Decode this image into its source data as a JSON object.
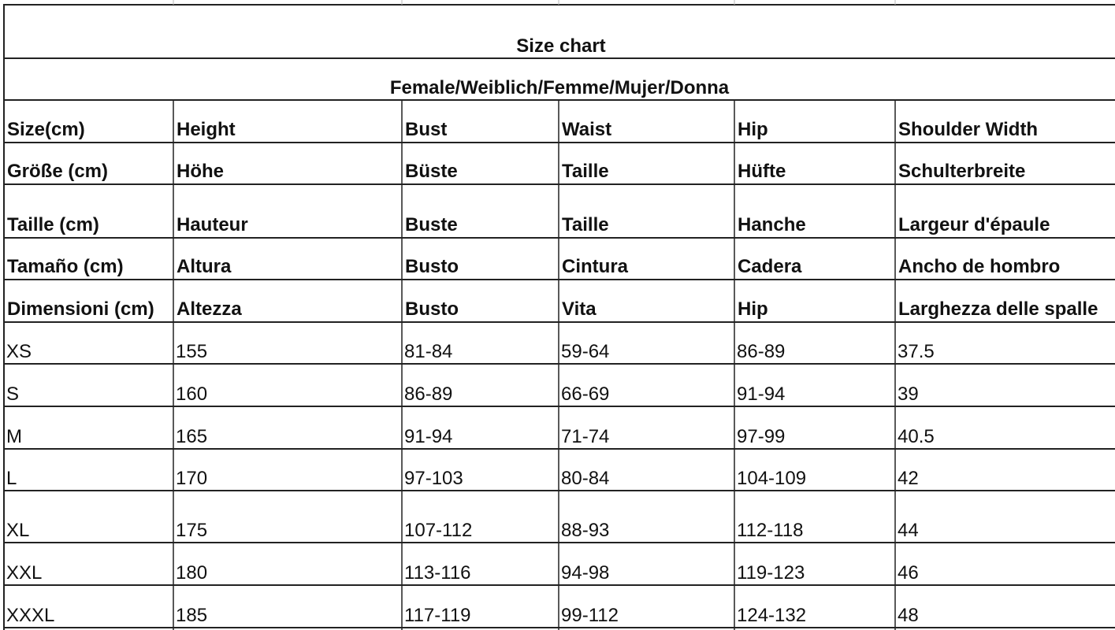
{
  "table": {
    "title": "Size chart",
    "subtitle": "Female/Weiblich/Femme/Mujer/Donna",
    "header_rows": [
      [
        "Size(cm)",
        "Height",
        "Bust",
        "Waist",
        "Hip",
        "Shoulder Width"
      ],
      [
        "Größe (cm)",
        "Höhe",
        "Büste",
        "Taille",
        "Hüfte",
        "Schulterbreite"
      ],
      [
        "Taille (cm)",
        "Hauteur",
        "Buste",
        "Taille",
        "Hanche",
        "Largeur d'épaule"
      ],
      [
        "Tamaño (cm)",
        "Altura",
        "Busto",
        "Cintura",
        "Cadera",
        "Ancho de hombro"
      ],
      [
        "Dimensioni (cm)",
        "Altezza",
        "Busto",
        "Vita",
        "Hip",
        "Larghezza delle spalle"
      ]
    ],
    "rows": [
      [
        "XS",
        "155",
        "81-84",
        "59-64",
        "86-89",
        "37.5"
      ],
      [
        "S",
        "160",
        "86-89",
        "66-69",
        "91-94",
        "39"
      ],
      [
        "M",
        "165",
        "91-94",
        "71-74",
        "97-99",
        "40.5"
      ],
      [
        "L",
        "170",
        "97-103",
        "80-84",
        "104-109",
        "42"
      ],
      [
        "XL",
        "175",
        "107-112",
        "88-93",
        "112-118",
        "44"
      ],
      [
        "XXL",
        "180",
        "113-116",
        "94-98",
        "119-123",
        "46"
      ],
      [
        "XXXL",
        "185",
        "117-119",
        "99-112",
        "124-132",
        "48"
      ]
    ]
  }
}
